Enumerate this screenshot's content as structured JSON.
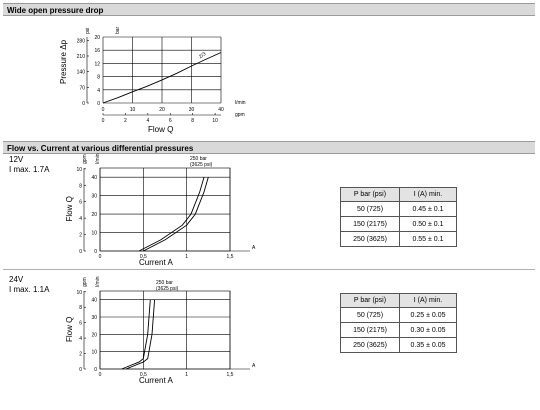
{
  "section1": {
    "title": "Wide open pressure drop"
  },
  "section2": {
    "title": "Flow vs. Current at various differential pressures"
  },
  "chart_data": [
    {
      "type": "line",
      "title": "",
      "xlabel": "Flow Q",
      "ylabel": "Pressure Δp",
      "x_unit_primary": "l/min",
      "x_unit_secondary": "gpm",
      "y_unit_primary": "bar",
      "y_unit_secondary": "psi",
      "xlim": [
        0,
        40
      ],
      "ylim": [
        0,
        20
      ],
      "x_ticks_primary": [
        "0",
        "10",
        "20",
        "30",
        "40"
      ],
      "x_ticks_secondary": [
        "0",
        "2",
        "4",
        "6",
        "8",
        "10"
      ],
      "y_ticks_primary": [
        "0",
        "4",
        "8",
        "12",
        "16",
        "20"
      ],
      "y_ticks_secondary": [
        "0",
        "70",
        "140",
        "210",
        "280"
      ],
      "grid": true,
      "series": [
        {
          "name": "2/3",
          "x": [
            0,
            5,
            10,
            15,
            20,
            25,
            30,
            35,
            40
          ],
          "y": [
            0,
            1.6,
            3.4,
            5.1,
            7.0,
            9.0,
            11.2,
            13.3,
            15.3
          ]
        }
      ]
    },
    {
      "type": "line",
      "title": "",
      "xlabel": "Current A",
      "ylabel": "Flow Q",
      "x_unit": "A",
      "y_unit_primary": "l/min",
      "y_unit_secondary": "gpm",
      "xlim": [
        0,
        1.5
      ],
      "ylim": [
        0,
        45
      ],
      "x_ticks": [
        "0",
        "0,5",
        "1",
        "1,5"
      ],
      "y_ticks_primary": [
        "0",
        "10",
        "20",
        "30",
        "40"
      ],
      "y_ticks_secondary": [
        "0",
        "2",
        "4",
        "6",
        "8",
        "10"
      ],
      "grid": true,
      "annotation": "250 bar\n(3625 psi)",
      "series": [
        {
          "name": "",
          "x": [
            0.45,
            0.7,
            0.95,
            1.05,
            1.15,
            1.2
          ],
          "y": [
            0,
            6,
            14,
            20,
            32,
            40
          ]
        },
        {
          "name": "",
          "x": [
            0.5,
            0.75,
            1.0,
            1.1,
            1.2,
            1.25
          ],
          "y": [
            0,
            6,
            14,
            20,
            32,
            40
          ]
        }
      ]
    },
    {
      "type": "line",
      "title": "",
      "xlabel": "Current A",
      "ylabel": "Flow Q",
      "x_unit": "A",
      "y_unit_primary": "l/min",
      "y_unit_secondary": "gpm",
      "xlim": [
        0,
        1.5
      ],
      "ylim": [
        0,
        45
      ],
      "x_ticks": [
        "0",
        "0,5",
        "1",
        "1,5"
      ],
      "y_ticks_primary": [
        "0",
        "10",
        "20",
        "30",
        "40"
      ],
      "y_ticks_secondary": [
        "0",
        "2",
        "4",
        "6",
        "8",
        "10"
      ],
      "grid": true,
      "annotation": "250 bar\n(3625 psi)",
      "series": [
        {
          "name": "",
          "x": [
            0.25,
            0.35,
            0.45,
            0.5,
            0.55,
            0.58
          ],
          "y": [
            0,
            2,
            4,
            6,
            20,
            40
          ]
        },
        {
          "name": "",
          "x": [
            0.3,
            0.4,
            0.5,
            0.55,
            0.6,
            0.63
          ],
          "y": [
            0,
            2,
            4,
            6,
            20,
            40
          ]
        }
      ]
    }
  ],
  "block12v": {
    "voltage": "12V",
    "imax": "I max. 1.7A",
    "table": {
      "headers": [
        "P bar (psi)",
        "I (A) min."
      ],
      "rows": [
        [
          "50 (725)",
          "0.45 ± 0.1"
        ],
        [
          "150 (2175)",
          "0.50 ± 0.1"
        ],
        [
          "250 (3625)",
          "0.55 ± 0.1"
        ]
      ]
    }
  },
  "block24v": {
    "voltage": "24V",
    "imax": "I max. 1.1A",
    "table": {
      "headers": [
        "P bar (psi)",
        "I (A) min."
      ],
      "rows": [
        [
          "50 (725)",
          "0.25 ± 0.05"
        ],
        [
          "150 (2175)",
          "0.30 ± 0.05"
        ],
        [
          "250 (3625)",
          "0.35 ± 0.05"
        ]
      ]
    }
  }
}
